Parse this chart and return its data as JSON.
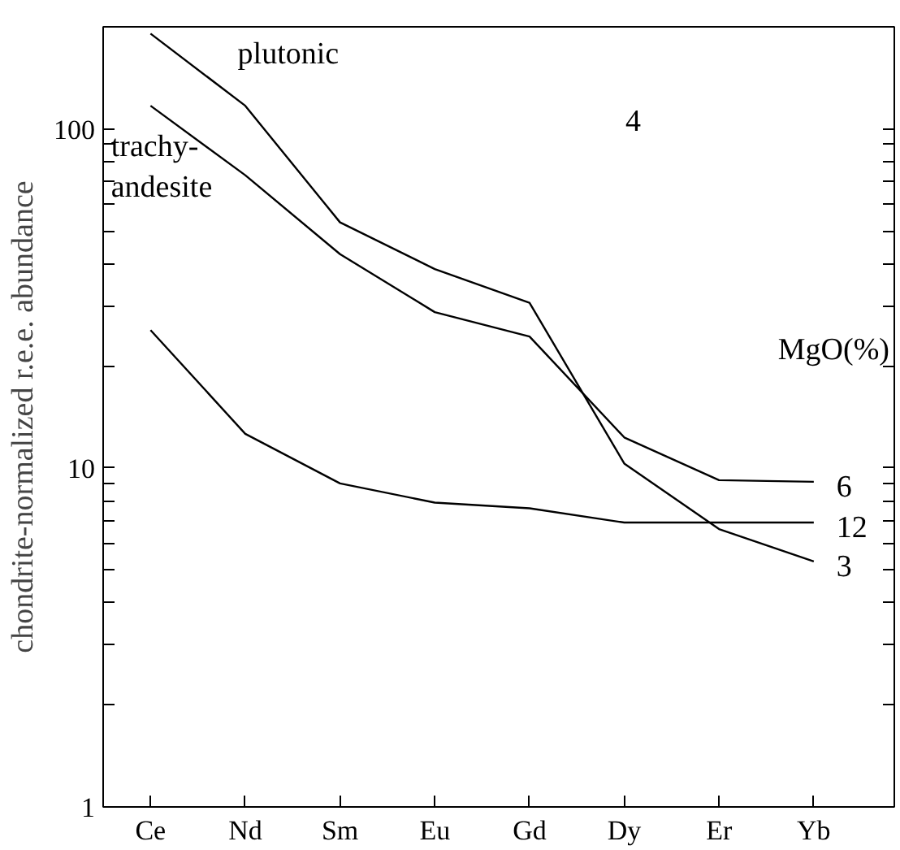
{
  "chart_data": {
    "type": "line",
    "ylabel": "chondrite-normalized r.e.e. abundance",
    "categories": [
      "Ce",
      "Nd",
      "Sm",
      "Eu",
      "Gd",
      "Dy",
      "Er",
      "Yb"
    ],
    "log": true,
    "ylim": [
      1,
      200
    ],
    "yticks": [
      1,
      {
        "value": 2,
        "label": null
      },
      {
        "value": 3,
        "label": null
      },
      {
        "value": 4,
        "label": null
      },
      {
        "value": 5,
        "label": null
      },
      {
        "value": 6,
        "label": null
      },
      {
        "value": 7,
        "label": null
      },
      {
        "value": 8,
        "label": null
      },
      {
        "value": 9,
        "label": null
      },
      10,
      {
        "value": 20,
        "label": null
      },
      {
        "value": 30,
        "label": null
      },
      {
        "value": 40,
        "label": null
      },
      {
        "value": 50,
        "label": null
      },
      {
        "value": 60,
        "label": null
      },
      {
        "value": 70,
        "label": null
      },
      {
        "value": 80,
        "label": null
      },
      {
        "value": 90,
        "label": null
      },
      100,
      {
        "value": 200,
        "label": null
      }
    ],
    "series": [
      {
        "name": "3",
        "color": "#000000",
        "values": [
          191,
          117,
          53,
          38.6,
          30.7,
          10.3,
          6.6,
          5.3
        ]
      },
      {
        "name": "6",
        "color": "#000000",
        "values": [
          117,
          73,
          42.7,
          28.8,
          24.4,
          12.3,
          9.2,
          9.1
        ]
      },
      {
        "name": "12",
        "color": "#000000",
        "values": [
          25.5,
          12.6,
          9.0,
          7.9,
          7.6,
          6.9,
          6.9,
          6.9
        ]
      }
    ],
    "annotations": [
      "plutonic",
      "trachy-\nandesite",
      "4"
    ],
    "legend_title": "MgO(%)",
    "grid": false,
    "legend": "right",
    "marker": "none",
    "line_style": "solid"
  }
}
